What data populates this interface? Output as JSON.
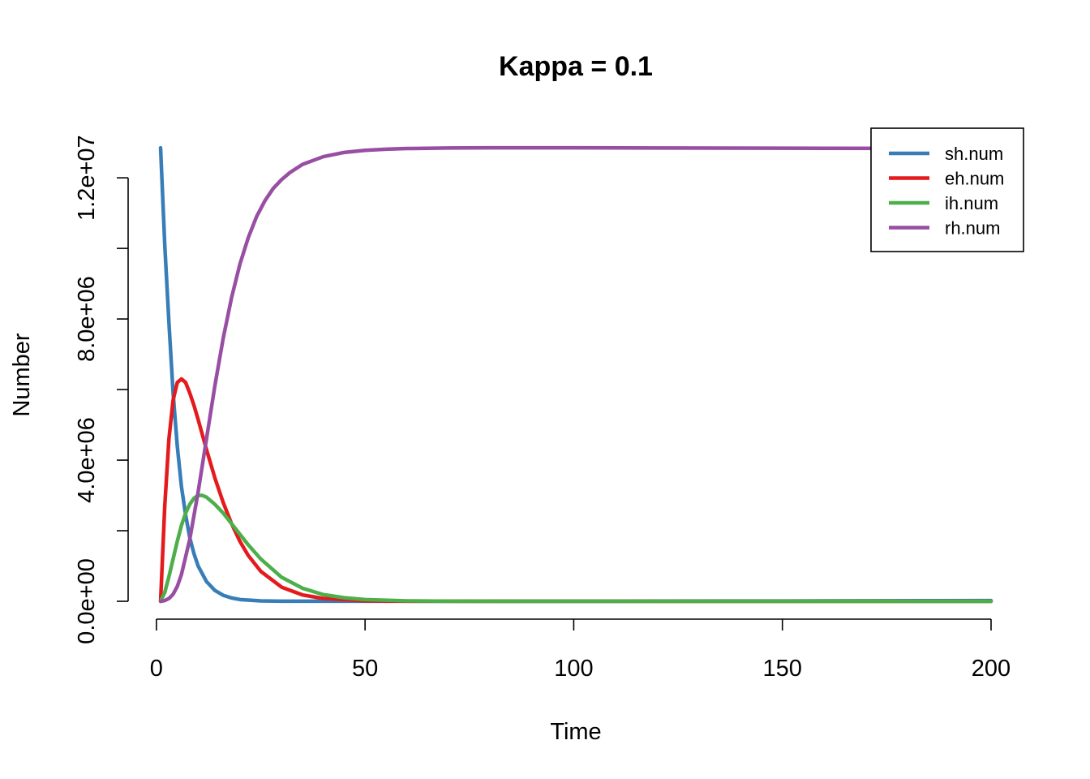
{
  "chart_data": {
    "type": "line",
    "title": "Kappa = 0.1",
    "xlabel": "Time",
    "ylabel": "Number",
    "xlim": [
      1,
      200
    ],
    "ylim": [
      0,
      12900000
    ],
    "x_ticks": [
      0,
      50,
      100,
      150,
      200
    ],
    "x_tick_labels": [
      "0",
      "50",
      "100",
      "150",
      "200"
    ],
    "y_ticks": [
      0,
      2000000,
      4000000,
      6000000,
      8000000,
      10000000,
      12000000
    ],
    "y_tick_labels": [
      "0.0e+00",
      "",
      "4.0e+06",
      "",
      "8.0e+06",
      "",
      "1.2e+07"
    ],
    "grid": false,
    "legend_position": "top-right",
    "series": [
      {
        "name": "sh.num",
        "color": "#377EB8",
        "x": [
          1,
          2,
          3,
          4,
          5,
          6,
          7,
          8,
          9,
          10,
          12,
          14,
          16,
          18,
          20,
          25,
          30,
          40,
          50,
          100,
          150,
          200
        ],
        "y": [
          12850000,
          10100000,
          7900000,
          5900000,
          4400000,
          3250000,
          2450000,
          1800000,
          1350000,
          1000000,
          560000,
          310000,
          170000,
          95000,
          50000,
          12000,
          4000,
          2000,
          2000,
          5000,
          10000,
          20000
        ]
      },
      {
        "name": "eh.num",
        "color": "#E41A1C",
        "x": [
          1,
          2,
          3,
          4,
          5,
          6,
          7,
          8,
          9,
          10,
          12,
          14,
          16,
          18,
          20,
          22,
          25,
          30,
          35,
          40,
          50,
          60,
          100,
          150,
          200
        ],
        "y": [
          0,
          2700000,
          4600000,
          5700000,
          6200000,
          6300000,
          6200000,
          5900000,
          5550000,
          5150000,
          4300000,
          3500000,
          2800000,
          2200000,
          1700000,
          1300000,
          850000,
          400000,
          180000,
          80000,
          15000,
          3000,
          0,
          0,
          0
        ]
      },
      {
        "name": "ih.num",
        "color": "#4DAF4A",
        "x": [
          1,
          2,
          3,
          4,
          5,
          6,
          7,
          8,
          9,
          10,
          11,
          12,
          14,
          16,
          18,
          20,
          22,
          25,
          30,
          35,
          40,
          45,
          50,
          60,
          70,
          100,
          150,
          200
        ],
        "y": [
          0,
          250000,
          700000,
          1200000,
          1700000,
          2150000,
          2500000,
          2750000,
          2920000,
          3000000,
          3000000,
          2950000,
          2750000,
          2500000,
          2200000,
          1900000,
          1600000,
          1200000,
          680000,
          370000,
          190000,
          100000,
          50000,
          12000,
          3000,
          0,
          0,
          0
        ]
      },
      {
        "name": "rh.num",
        "color": "#984EA3",
        "x": [
          1,
          2,
          3,
          4,
          5,
          6,
          8,
          10,
          12,
          14,
          16,
          18,
          20,
          22,
          24,
          26,
          28,
          30,
          32,
          35,
          40,
          45,
          50,
          55,
          60,
          70,
          80,
          100,
          120,
          150,
          200
        ],
        "y": [
          0,
          20000,
          80000,
          200000,
          420000,
          760000,
          1760000,
          3100000,
          4600000,
          6100000,
          7450000,
          8600000,
          9550000,
          10300000,
          10900000,
          11350000,
          11700000,
          11950000,
          12150000,
          12380000,
          12600000,
          12720000,
          12780000,
          12810000,
          12830000,
          12845000,
          12850000,
          12850000,
          12845000,
          12840000,
          12830000
        ]
      }
    ]
  }
}
